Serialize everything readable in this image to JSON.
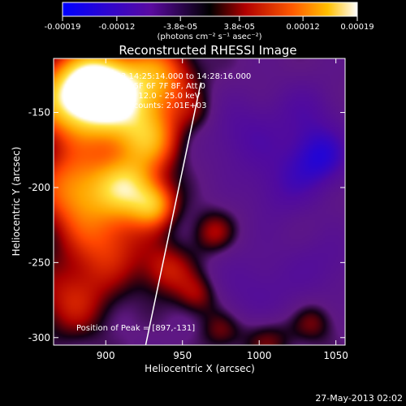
{
  "colorbar": {
    "tick_labels": [
      "-0.00019",
      "-0.00012",
      "-3.8e-05",
      "3.8e-05",
      "0.00012",
      "0.00019"
    ],
    "tick_values": [
      -0.00019,
      -0.00012,
      -3.8e-05,
      3.8e-05,
      0.00012,
      0.00019
    ],
    "range": [
      -0.00019,
      0.00019
    ],
    "units": "(photons cm⁻² s⁻¹ asec⁻²)"
  },
  "annotations": {
    "time_range": "25-Jan-2003 14:25:14.000 to 14:28:16.000",
    "detectors": "Detectors: 4F 5F 6F 7F 8F, Att 0",
    "energy_range": "Energy Range: 12.0 - 25.0 keV",
    "clean_counts": "Clean     Total counts: 2.01E+03",
    "peak": "Position of Peak = [897,-131]"
  },
  "footer": {
    "timestamp": "27-May-2013 02:02"
  },
  "chart_data": {
    "type": "heatmap",
    "title": "Reconstructed RHESSI Image",
    "xlabel": "Heliocentric X (arcsec)",
    "ylabel": "Heliocentric Y (arcsec)",
    "xlim": [
      866,
      1056
    ],
    "ylim": [
      -305,
      -114
    ],
    "x_ticks": [
      900,
      950,
      1000,
      1050
    ],
    "y_ticks": [
      -150,
      -200,
      -250,
      -300
    ],
    "x_tick_labels": [
      "900",
      "950",
      "1000",
      "1050"
    ],
    "y_tick_labels": [
      "-150",
      "-200",
      "-250",
      "-300"
    ],
    "peak": {
      "x": 897,
      "y": -131
    },
    "limb_line": {
      "points": [
        [
          962,
          -130
        ],
        [
          926,
          -305
        ]
      ]
    },
    "sources": [
      {
        "x": 895,
        "y": -131,
        "amp": 1.0,
        "width": 16
      },
      {
        "x": 875,
        "y": -142,
        "amp": 0.75,
        "width": 18
      },
      {
        "x": 912,
        "y": -150,
        "amp": 0.7,
        "width": 20
      },
      {
        "x": 935,
        "y": -125,
        "amp": 0.55,
        "width": 16
      },
      {
        "x": 880,
        "y": -200,
        "amp": 0.65,
        "width": 18
      },
      {
        "x": 915,
        "y": -200,
        "amp": 0.75,
        "width": 14
      },
      {
        "x": 932,
        "y": -212,
        "amp": 0.55,
        "width": 10
      },
      {
        "x": 900,
        "y": -235,
        "amp": 0.45,
        "width": 20
      },
      {
        "x": 930,
        "y": -170,
        "amp": 0.45,
        "width": 14
      },
      {
        "x": 878,
        "y": -275,
        "amp": 0.35,
        "width": 18
      },
      {
        "x": 940,
        "y": -255,
        "amp": 0.35,
        "width": 12
      },
      {
        "x": 960,
        "y": -272,
        "amp": 0.3,
        "width": 10
      },
      {
        "x": 970,
        "y": -230,
        "amp": 0.3,
        "width": 10
      },
      {
        "x": 1040,
        "y": -180,
        "amp": -0.55,
        "width": 14
      },
      {
        "x": 1015,
        "y": -200,
        "amp": -0.3,
        "width": 16
      },
      {
        "x": 990,
        "y": -165,
        "amp": -0.3,
        "width": 18
      },
      {
        "x": 1030,
        "y": -150,
        "amp": -0.25,
        "width": 16
      },
      {
        "x": 1000,
        "y": -270,
        "amp": -0.25,
        "width": 22
      },
      {
        "x": 1045,
        "y": -250,
        "amp": -0.2,
        "width": 16
      },
      {
        "x": 1035,
        "y": -290,
        "amp": 0.25,
        "width": 10
      },
      {
        "x": 1005,
        "y": -300,
        "amp": 0.3,
        "width": 12
      },
      {
        "x": 975,
        "y": -295,
        "amp": 0.25,
        "width": 10
      },
      {
        "x": 960,
        "y": -150,
        "amp": 0.15,
        "width": 10
      }
    ]
  }
}
